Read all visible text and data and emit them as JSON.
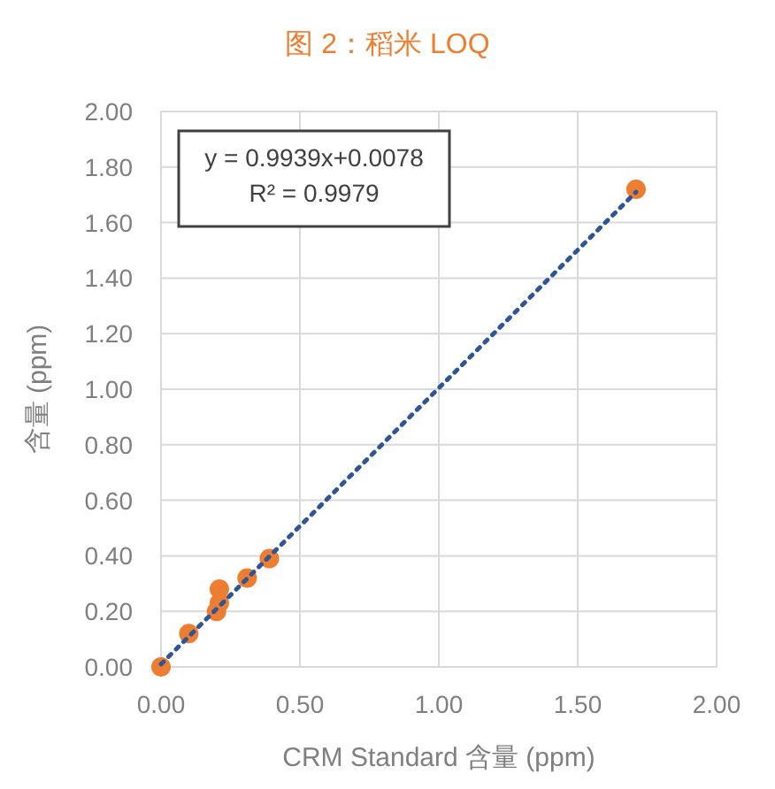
{
  "chart_data": {
    "type": "scatter",
    "title": "图 2：稻米 LOQ",
    "xlabel": "CRM Standard 含量 (ppm)",
    "ylabel": "含量 (ppm)",
    "x": [
      0,
      0.1,
      0.21,
      0.2,
      0.21,
      0.31,
      0.39,
      1.71
    ],
    "series": [
      {
        "color": "#ed7d31",
        "marker": "circle",
        "values": [
          0,
          0.12,
          0.28,
          0.2,
          0.23,
          0.32,
          0.39,
          1.72
        ]
      },
      {
        "type": "line",
        "color": "#2f5597",
        "line_style": "dotted",
        "marker": "none",
        "x": [
          0,
          1.71
        ],
        "values": [
          0.01,
          1.71
        ]
      }
    ],
    "annotations": [
      "y = 0.9939x+0.0078",
      "R² = 0.9979"
    ],
    "xlim": [
      0,
      2
    ],
    "xticks": [
      {
        "value": 0,
        "label": "0.00"
      },
      {
        "value": 0.5,
        "label": "0.50"
      },
      {
        "value": 1,
        "label": "1.00"
      },
      {
        "value": 1.5,
        "label": "1.50"
      },
      {
        "value": 2,
        "label": "2.00"
      }
    ],
    "ylim": [
      0,
      2
    ],
    "yticks": [
      {
        "value": 0,
        "label": "0.00"
      },
      {
        "value": 0.2,
        "label": "0.20"
      },
      {
        "value": 0.4,
        "label": "0.40"
      },
      {
        "value": 0.6,
        "label": "0.60"
      },
      {
        "value": 0.8,
        "label": "0.80"
      },
      {
        "value": 1,
        "label": "1.00"
      },
      {
        "value": 1.2,
        "label": "1.20"
      },
      {
        "value": 1.4,
        "label": "1.40"
      },
      {
        "value": 1.6,
        "label": "1.60"
      },
      {
        "value": 1.8,
        "label": "1.80"
      },
      {
        "value": 2,
        "label": "2.00"
      }
    ],
    "grid": true
  }
}
